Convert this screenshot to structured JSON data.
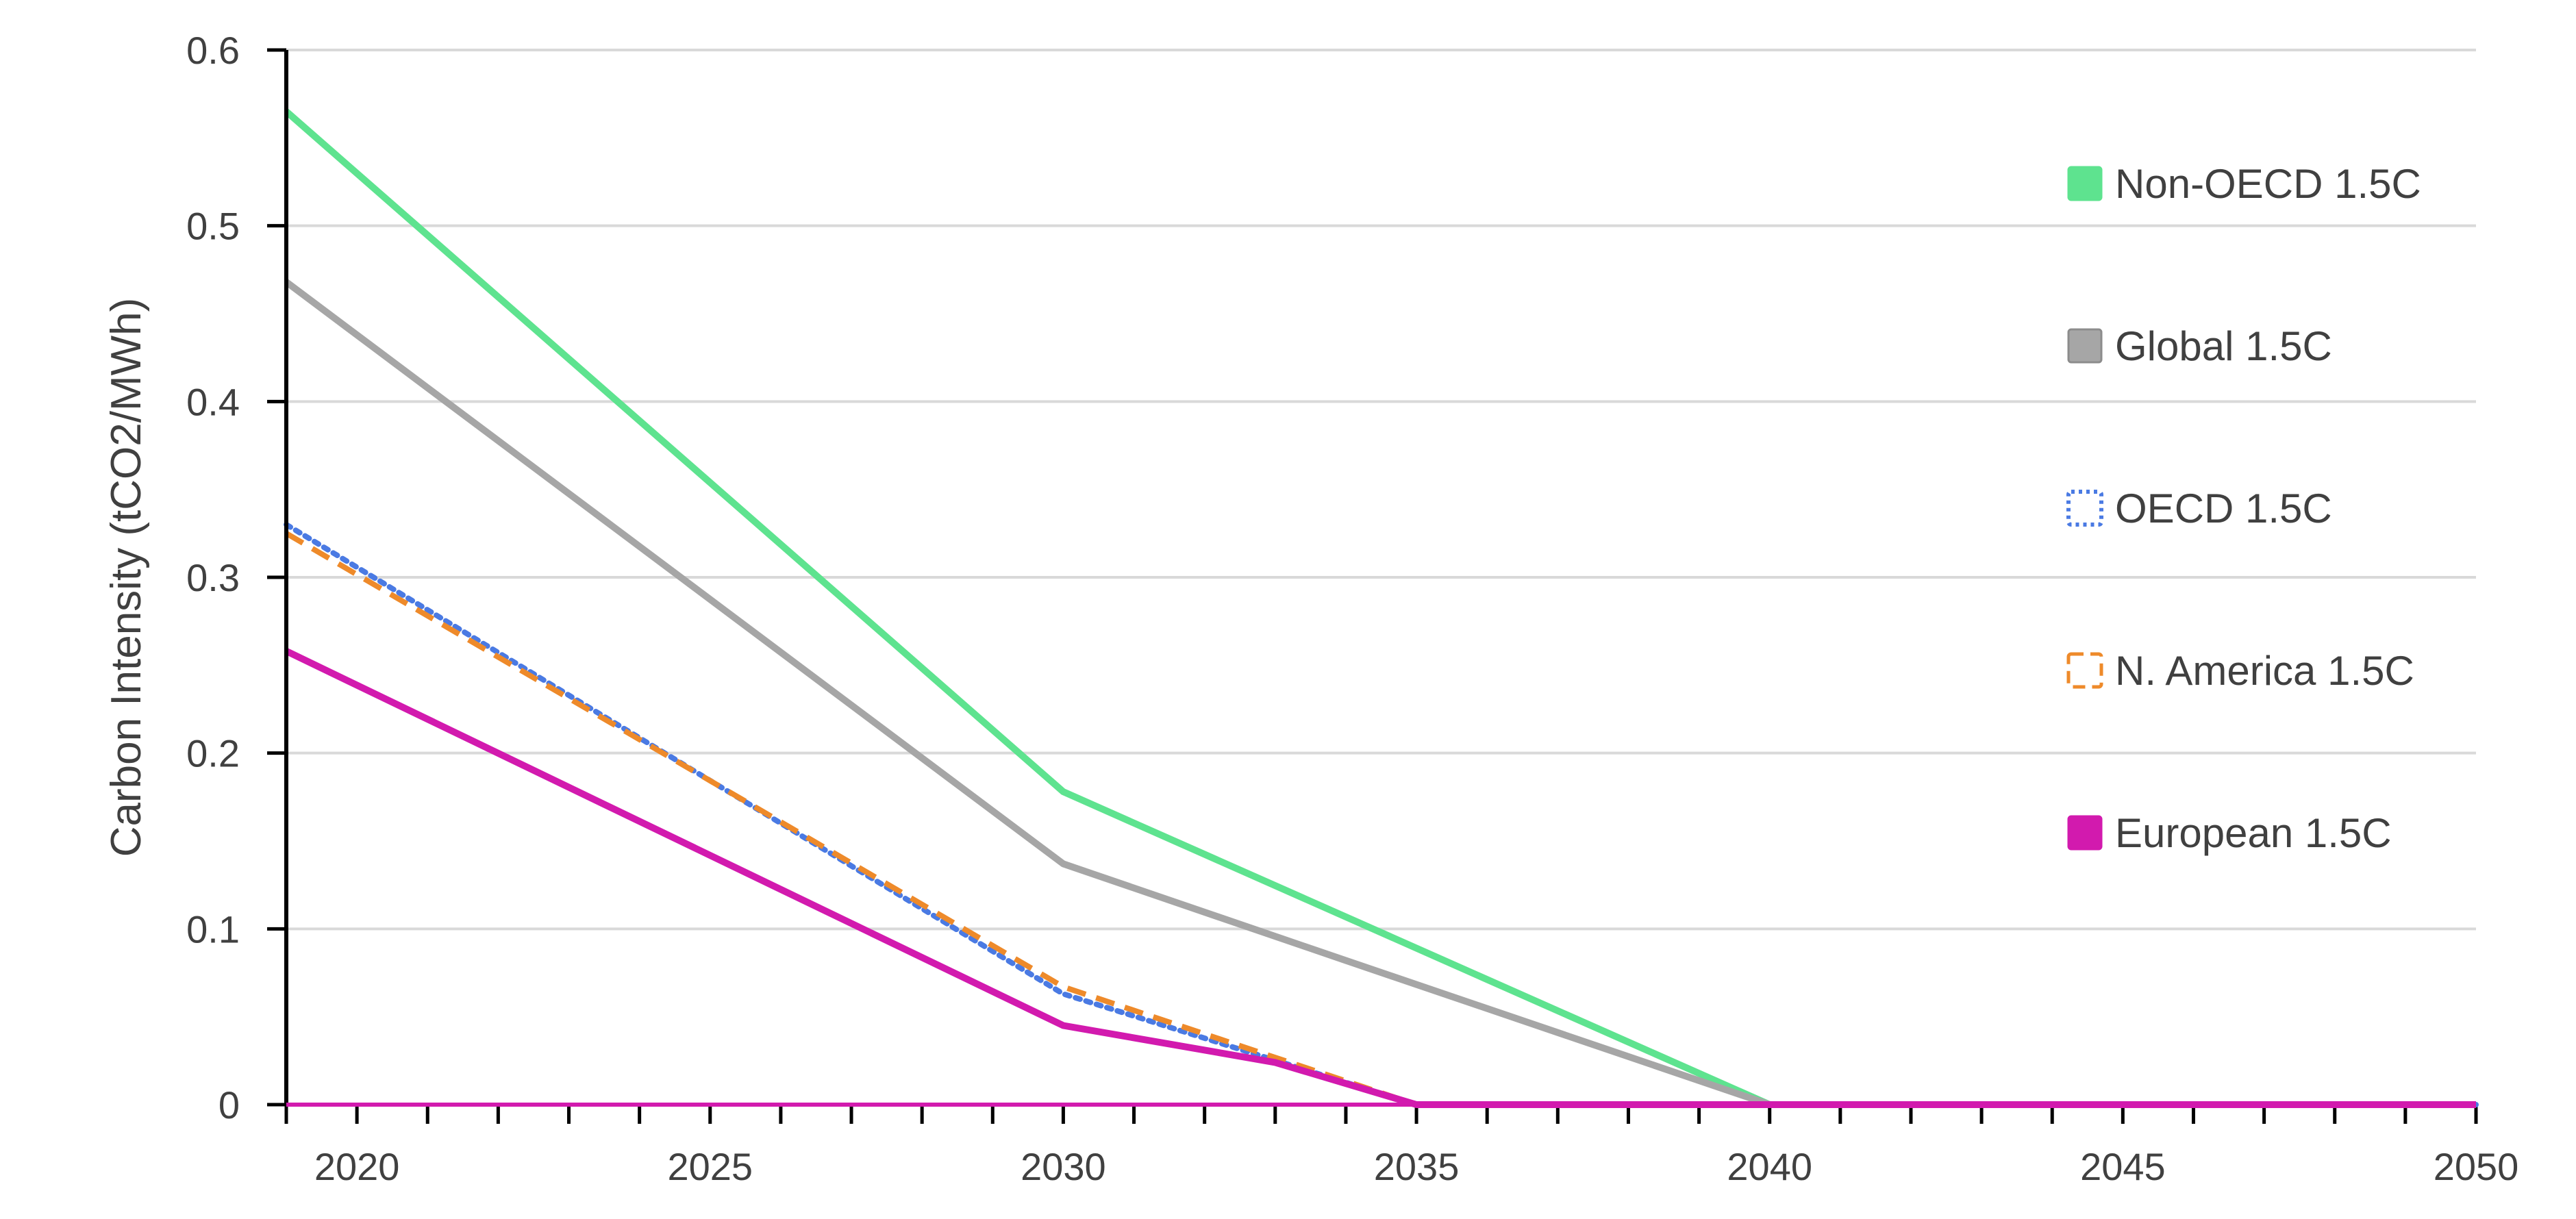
{
  "chart_data": {
    "type": "line",
    "ylabel": "Carbon Intensity (tCO2/MWh)",
    "xlabel": "",
    "xlim": [
      2019,
      2050
    ],
    "ylim": [
      0,
      0.6
    ],
    "x_ticks": [
      "2020",
      "2025",
      "2030",
      "2035",
      "2040",
      "2045",
      "2050"
    ],
    "y_ticks": [
      "0",
      "0.1",
      "0.2",
      "0.3",
      "0.4",
      "0.5",
      "0.6"
    ],
    "grid": "horizontal",
    "legend_position": "right",
    "series": [
      {
        "name": "Non-OECD 1.5C",
        "color": "#5ee38f",
        "style": "solid",
        "x": [
          2019,
          2030,
          2040,
          2050
        ],
        "y": [
          0.565,
          0.178,
          0.0,
          0.0
        ]
      },
      {
        "name": "Global 1.5C",
        "color": "#a6a6a6",
        "style": "solid",
        "x": [
          2019,
          2030,
          2034,
          2040,
          2050
        ],
        "y": [
          0.468,
          0.137,
          0.082,
          0.0,
          0.0
        ]
      },
      {
        "name": "OECD 1.5C",
        "color": "#4a7ae3",
        "style": "dotted",
        "x": [
          2019,
          2030,
          2035,
          2050
        ],
        "y": [
          0.33,
          0.063,
          0.0,
          0.0
        ]
      },
      {
        "name": "N. America 1.5C",
        "color": "#ee8a2a",
        "style": "dashed",
        "x": [
          2019,
          2030,
          2035,
          2050
        ],
        "y": [
          0.325,
          0.067,
          0.0,
          0.0
        ]
      },
      {
        "name": "European 1.5C",
        "color": "#d21aae",
        "style": "solid",
        "x": [
          2019,
          2030,
          2033,
          2035,
          2050
        ],
        "y": [
          0.258,
          0.045,
          0.024,
          0.0,
          0.0
        ]
      }
    ]
  }
}
